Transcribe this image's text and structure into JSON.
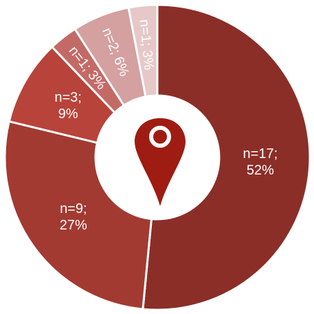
{
  "chart_data": {
    "type": "donut",
    "values": [
      17,
      9,
      3,
      1,
      2,
      1
    ],
    "value_labels": [
      "n=17; 52%",
      "n=9; 27%",
      "n=3; 9%",
      "n=1; 3%",
      "n=2; 6%",
      "n=1; 3%"
    ],
    "colors": [
      "#8b2e27",
      "#a23a32",
      "#b8433a",
      "#c46a66",
      "#d4a0a0",
      "#e6c8c8"
    ]
  }
}
